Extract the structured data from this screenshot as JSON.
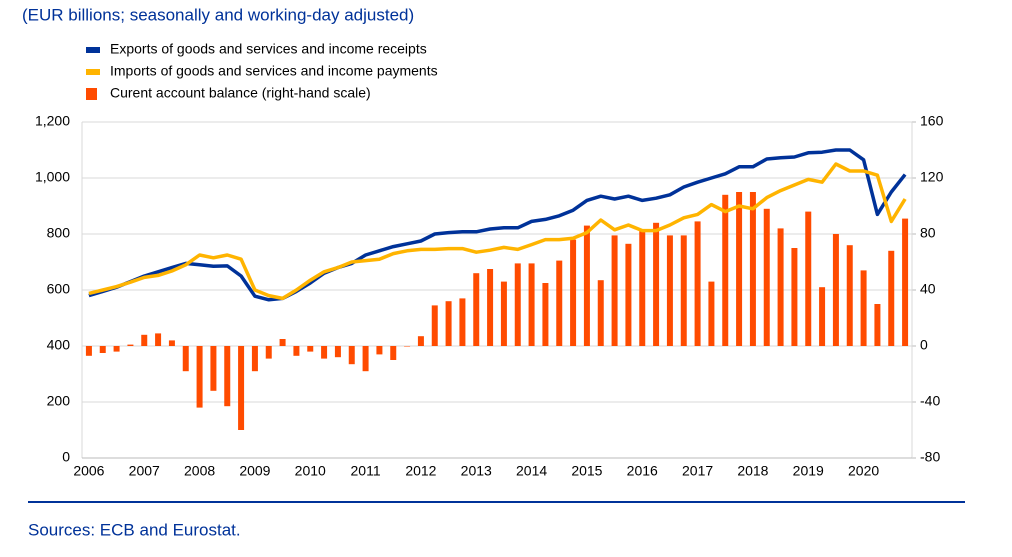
{
  "chart_data": {
    "type": "line",
    "title": "(EUR billions; seasonally and working-day adjusted)",
    "source": "Sources: ECB and Eurostat.",
    "categories": [
      "2006",
      null,
      null,
      null,
      "2007",
      null,
      null,
      null,
      "2008",
      null,
      null,
      null,
      "2009",
      null,
      null,
      null,
      "2010",
      null,
      null,
      null,
      "2011",
      null,
      null,
      null,
      "2012",
      null,
      null,
      null,
      "2013",
      null,
      null,
      null,
      "2014",
      null,
      null,
      null,
      "2015",
      null,
      null,
      null,
      "2016",
      null,
      null,
      null,
      "2017",
      null,
      null,
      null,
      "2018",
      null,
      null,
      null,
      "2019",
      null,
      null,
      null,
      "2020",
      null,
      null,
      null
    ],
    "series": [
      {
        "name": "Exports of goods and services and income receipts",
        "type": "line",
        "color": "#003299",
        "values": [
          580,
          595,
          610,
          630,
          650,
          665,
          680,
          695,
          690,
          685,
          686,
          650,
          578,
          565,
          570,
          595,
          625,
          660,
          680,
          695,
          725,
          740,
          755,
          765,
          775,
          800,
          805,
          808,
          808,
          818,
          822,
          822,
          845,
          852,
          865,
          885,
          920,
          935,
          925,
          935,
          920,
          928,
          940,
          968,
          985,
          1000,
          1015,
          1040,
          1040,
          1068,
          1072,
          1075,
          1090,
          1092,
          1100,
          1100,
          1065,
          870,
          950,
          1012
        ]
      },
      {
        "name": "Imports of goods and services and income payments",
        "type": "line",
        "color": "#ffb400",
        "values": [
          588,
          600,
          612,
          628,
          645,
          652,
          668,
          690,
          725,
          715,
          725,
          710,
          600,
          580,
          570,
          600,
          635,
          665,
          680,
          700,
          705,
          710,
          730,
          740,
          745,
          745,
          748,
          748,
          735,
          742,
          752,
          745,
          762,
          780,
          780,
          785,
          805,
          850,
          815,
          832,
          812,
          812,
          832,
          858,
          870,
          905,
          880,
          900,
          890,
          930,
          955,
          975,
          995,
          985,
          1050,
          1025,
          1025,
          1010,
          845,
          925
        ]
      },
      {
        "name": "Curent account balance (right-hand scale)",
        "type": "bar",
        "axis": "y2",
        "color": "#ff4b00",
        "values": [
          -7,
          -5,
          -4,
          1,
          8,
          9,
          4,
          -18,
          -44,
          -32,
          -43,
          -60,
          -18,
          -9,
          5,
          -7,
          -4,
          -9,
          -8,
          -13,
          -18,
          -6,
          -10,
          0,
          7,
          29,
          32,
          34,
          52,
          55,
          46,
          59,
          59,
          45,
          61,
          76,
          86,
          47,
          79,
          73,
          82,
          88,
          79,
          79,
          89,
          46,
          108,
          110,
          110,
          98,
          84,
          70,
          96,
          42,
          80,
          72,
          54,
          30,
          68,
          91
        ]
      }
    ],
    "ylim": [
      0,
      1200
    ],
    "yticks": [
      0,
      200,
      400,
      600,
      800,
      {
        "value": 1000,
        "label": "1,000"
      },
      {
        "value": 1200,
        "label": "1,200"
      }
    ],
    "y2lim": [
      -80,
      160
    ],
    "y2ticks": [
      -80,
      -40,
      0,
      40,
      80,
      120,
      160
    ],
    "grid": true
  }
}
